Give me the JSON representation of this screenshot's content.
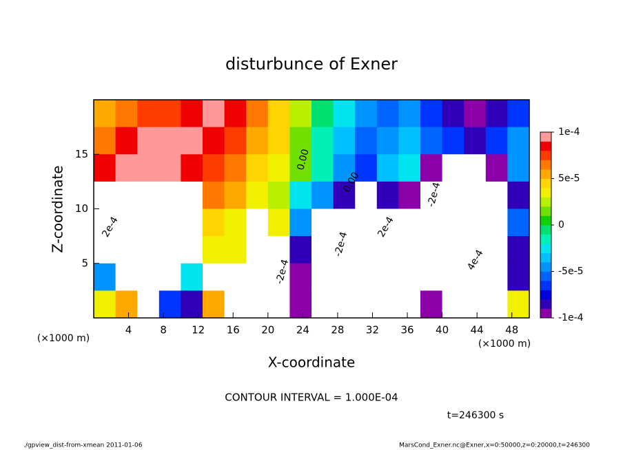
{
  "chart_data": {
    "type": "heatmap",
    "title": "disturbunce of Exner",
    "xlabel": "X-coordinate",
    "ylabel": "Z-coordinate",
    "xunit": "(×1000 m)",
    "yunit": "(×1000 m)",
    "xlim": [
      0,
      50
    ],
    "ylim": [
      0,
      20
    ],
    "xticks": [
      4,
      8,
      12,
      16,
      20,
      24,
      28,
      32,
      36,
      40,
      44,
      48
    ],
    "yticks": [
      5,
      10,
      15
    ],
    "clim": [
      -0.0001,
      0.0001
    ],
    "cticks": [
      {
        "value": 0.0001,
        "label": "1e-4"
      },
      {
        "value": 5e-05,
        "label": "5e-5"
      },
      0,
      {
        "value": -5e-05,
        "label": "-5e-5"
      },
      {
        "value": -0.0001,
        "label": "-1e-4"
      }
    ],
    "colors": [
      "#8c00a8",
      "#3000b8",
      "#0000dc",
      "#0034ff",
      "#0064ff",
      "#0094ff",
      "#00c0ff",
      "#00e4f0",
      "#00f0b8",
      "#00e070",
      "#10d000",
      "#70e000",
      "#b8f000",
      "#f0f000",
      "#ffd400",
      "#ffa800",
      "#ff7800",
      "#ff3c00",
      "#f00000",
      "#ff9898"
    ],
    "out_of_range_color": "#ffffff",
    "z": [
      [
        5e-05,
        6e-05,
        7e-05,
        7e-05,
        8e-05,
        9e-05,
        8e-05,
        6e-05,
        4e-05,
        2e-05,
        -1e-05,
        -3e-05,
        -5e-05,
        -6e-05,
        -5e-05,
        -7e-05,
        -8e-05,
        -9e-05,
        -8e-05,
        -7e-05
      ],
      [
        6e-05,
        8e-05,
        9e-05,
        9e-05,
        9e-05,
        8e-05,
        7e-05,
        5e-05,
        4e-05,
        1e-05,
        -2e-05,
        -4e-05,
        -6e-05,
        -5e-05,
        -4e-05,
        -6e-05,
        -7e-05,
        -8e-05,
        -7e-05,
        -5e-05
      ],
      [
        8e-05,
        9e-05,
        9e-05,
        9e-05,
        8e-05,
        7e-05,
        6e-05,
        4e-05,
        3e-05,
        1e-05,
        -2e-05,
        -5e-05,
        -7e-05,
        -4e-05,
        -3e-05,
        -9e-05,
        -0.00015,
        -0.00015,
        -9e-05,
        -5e-05
      ],
      [
        0.00015,
        0.00012,
        0.00012,
        0.00012,
        0.00012,
        6e-05,
        5e-05,
        3e-05,
        2e-05,
        -3e-05,
        -5e-05,
        -8e-05,
        -0.00012,
        -8e-05,
        -9e-05,
        -0.00015,
        -0.0002,
        -0.0002,
        -0.00015,
        -8e-05
      ],
      [
        0.00015,
        0.00015,
        0.00015,
        0.00015,
        0.00015,
        4e-05,
        3e-05,
        0.00015,
        3e-05,
        -5e-05,
        -0.00015,
        -0.00015,
        -0.00015,
        -0.00015,
        -0.00015,
        -0.00015,
        -0.0002,
        -0.00025,
        -0.00015,
        -6e-05
      ],
      [
        0.00015,
        0.00015,
        0.00015,
        0.00015,
        0.00015,
        3e-05,
        3e-05,
        0.00015,
        0.00015,
        -8e-05,
        -0.0002,
        -0.0002,
        -0.00015,
        -0.00015,
        -0.00015,
        -0.00015,
        -0.00025,
        -0.0003,
        -0.0002,
        -8e-05
      ],
      [
        -5e-05,
        0.00015,
        0.00015,
        0.00015,
        -3e-05,
        0.00015,
        0.00015,
        0.00015,
        0.00015,
        -0.0001,
        -0.00025,
        -0.0003,
        -0.0002,
        0.00015,
        0.00015,
        -0.00015,
        -0.0003,
        -0.0003,
        -0.0002,
        -8e-05
      ],
      [
        3e-05,
        5e-05,
        0.00015,
        -7e-05,
        -8e-05,
        5e-05,
        0.00015,
        0.00015,
        0.00015,
        -0.0001,
        -0.0002,
        -0.00025,
        -0.00015,
        0.00015,
        0.00015,
        -0.0001,
        -0.0002,
        -0.0002,
        -0.00015,
        3e-05
      ]
    ],
    "contour_labels": [
      "0.00",
      "0.00",
      "-2e-4",
      "2e-4",
      "-2e-4",
      "2e-4",
      "-2e-4",
      "4e-4"
    ],
    "contour_interval": "CONTOUR INTERVAL = 1.000E-04",
    "time": "t=246300 s",
    "footer_left": "./gpview_dist-from-xmean  2011-01-06",
    "footer_right": "MarsCond_Exner.nc@Exner,x=0:50000,z=0:20000,t=246300"
  }
}
